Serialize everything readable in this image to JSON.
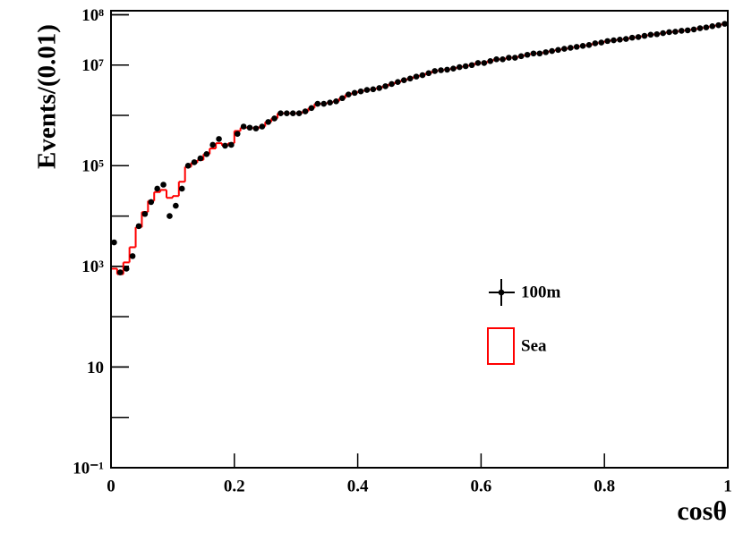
{
  "chart_data": {
    "type": "histogram",
    "y_label": "Events/(0.01)",
    "x_label": "cosθ",
    "xlim": [
      0,
      1
    ],
    "xticks": [
      0,
      0.2,
      0.4,
      0.6,
      0.8,
      1
    ],
    "ylim": [
      0.1,
      120000000
    ],
    "log_y": true,
    "yticks": [
      {
        "value": 0.1,
        "label": "10⁻¹"
      },
      10,
      {
        "value": 1000,
        "label": "10³"
      },
      {
        "value": 100000,
        "label": "10⁵"
      },
      {
        "value": 10000000,
        "label": "10⁷"
      },
      {
        "value": 100000000,
        "label": "10⁸"
      }
    ],
    "bins": [
      0,
      0.01,
      0.02,
      0.03,
      0.04,
      0.05,
      0.06,
      0.07,
      0.08,
      0.09,
      0.1,
      0.11,
      0.12,
      0.13,
      0.14,
      0.15,
      0.16,
      0.17,
      0.18,
      0.19,
      0.2,
      0.21,
      0.22,
      0.23,
      0.24,
      0.25,
      0.26,
      0.27,
      0.28,
      0.29,
      0.3,
      0.31,
      0.32,
      0.33,
      0.34,
      0.35,
      0.36,
      0.37,
      0.38,
      0.39,
      0.4,
      0.41,
      0.42,
      0.43,
      0.44,
      0.45,
      0.46,
      0.47,
      0.48,
      0.49,
      0.5,
      0.51,
      0.52,
      0.53,
      0.54,
      0.55,
      0.56,
      0.57,
      0.58,
      0.59,
      0.6,
      0.61,
      0.62,
      0.63,
      0.64,
      0.65,
      0.66,
      0.67,
      0.68,
      0.69,
      0.7,
      0.71,
      0.72,
      0.73,
      0.74,
      0.75,
      0.76,
      0.77,
      0.78,
      0.79,
      0.8,
      0.81,
      0.82,
      0.83,
      0.84,
      0.85,
      0.86,
      0.87,
      0.88,
      0.89,
      0.9,
      0.91,
      0.92,
      0.93,
      0.94,
      0.95,
      0.96,
      0.97,
      0.98,
      0.99,
      1
    ],
    "series": [
      {
        "name": "100m",
        "color": "#000000",
        "style": "points",
        "values": [
          3000,
          760,
          900,
          1600,
          6300,
          11000,
          19000,
          35000,
          42000,
          10000,
          16000,
          35000,
          100000,
          117000,
          140000,
          170000,
          260000,
          340000,
          250000,
          260000,
          430000,
          600000,
          570000,
          550000,
          600000,
          740000,
          870000,
          1100000,
          1100000,
          1100000,
          1100000,
          1200000,
          1400000,
          1700000,
          1700000,
          1800000,
          1900000,
          2200000,
          2600000,
          2800000,
          3000000,
          3200000,
          3300000,
          3500000,
          3800000,
          4200000,
          4600000,
          5000000,
          5400000,
          5900000,
          6300000,
          6900000,
          7600000,
          7900000,
          8100000,
          8500000,
          9100000,
          9500000,
          10000000,
          11000000,
          11000000,
          12000000,
          13000000,
          13000000,
          14000000,
          14000000,
          15000000,
          16000000,
          17000000,
          17000000,
          18000000,
          19000000,
          20000000,
          21000000,
          22000000,
          23000000,
          24000000,
          25000000,
          27000000,
          28000000,
          30000000,
          31000000,
          32000000,
          33000000,
          35000000,
          36000000,
          38000000,
          40000000,
          41000000,
          43000000,
          45000000,
          46000000,
          48000000,
          49000000,
          51000000,
          54000000,
          56000000,
          59000000,
          62000000,
          66000000
        ]
      },
      {
        "name": "Sea",
        "color": "#ff0000",
        "style": "step",
        "values": [
          900,
          700,
          1200,
          2400,
          6000,
          12000,
          20000,
          30000,
          33000,
          23000,
          25000,
          48000,
          95000,
          115000,
          130000,
          170000,
          220000,
          280000,
          250000,
          280000,
          490000,
          570000,
          570000,
          550000,
          600000,
          740000,
          870000,
          1100000,
          1100000,
          1100000,
          1100000,
          1200000,
          1400000,
          1700000,
          1700000,
          1800000,
          1900000,
          2200000,
          2600000,
          2800000,
          3000000,
          3200000,
          3300000,
          3500000,
          3800000,
          4200000,
          4600000,
          5000000,
          5400000,
          5900000,
          6300000,
          6900000,
          7600000,
          7900000,
          8100000,
          8500000,
          9100000,
          9500000,
          10000000,
          11000000,
          11000000,
          12000000,
          13000000,
          13000000,
          14000000,
          14000000,
          15000000,
          16000000,
          17000000,
          17000000,
          18000000,
          19000000,
          20000000,
          21000000,
          22000000,
          23000000,
          24000000,
          25000000,
          27000000,
          28000000,
          30000000,
          31000000,
          32000000,
          33000000,
          35000000,
          36000000,
          38000000,
          40000000,
          41000000,
          43000000,
          45000000,
          46000000,
          48000000,
          49000000,
          51000000,
          54000000,
          56000000,
          59000000,
          62000000,
          66000000
        ]
      }
    ]
  }
}
